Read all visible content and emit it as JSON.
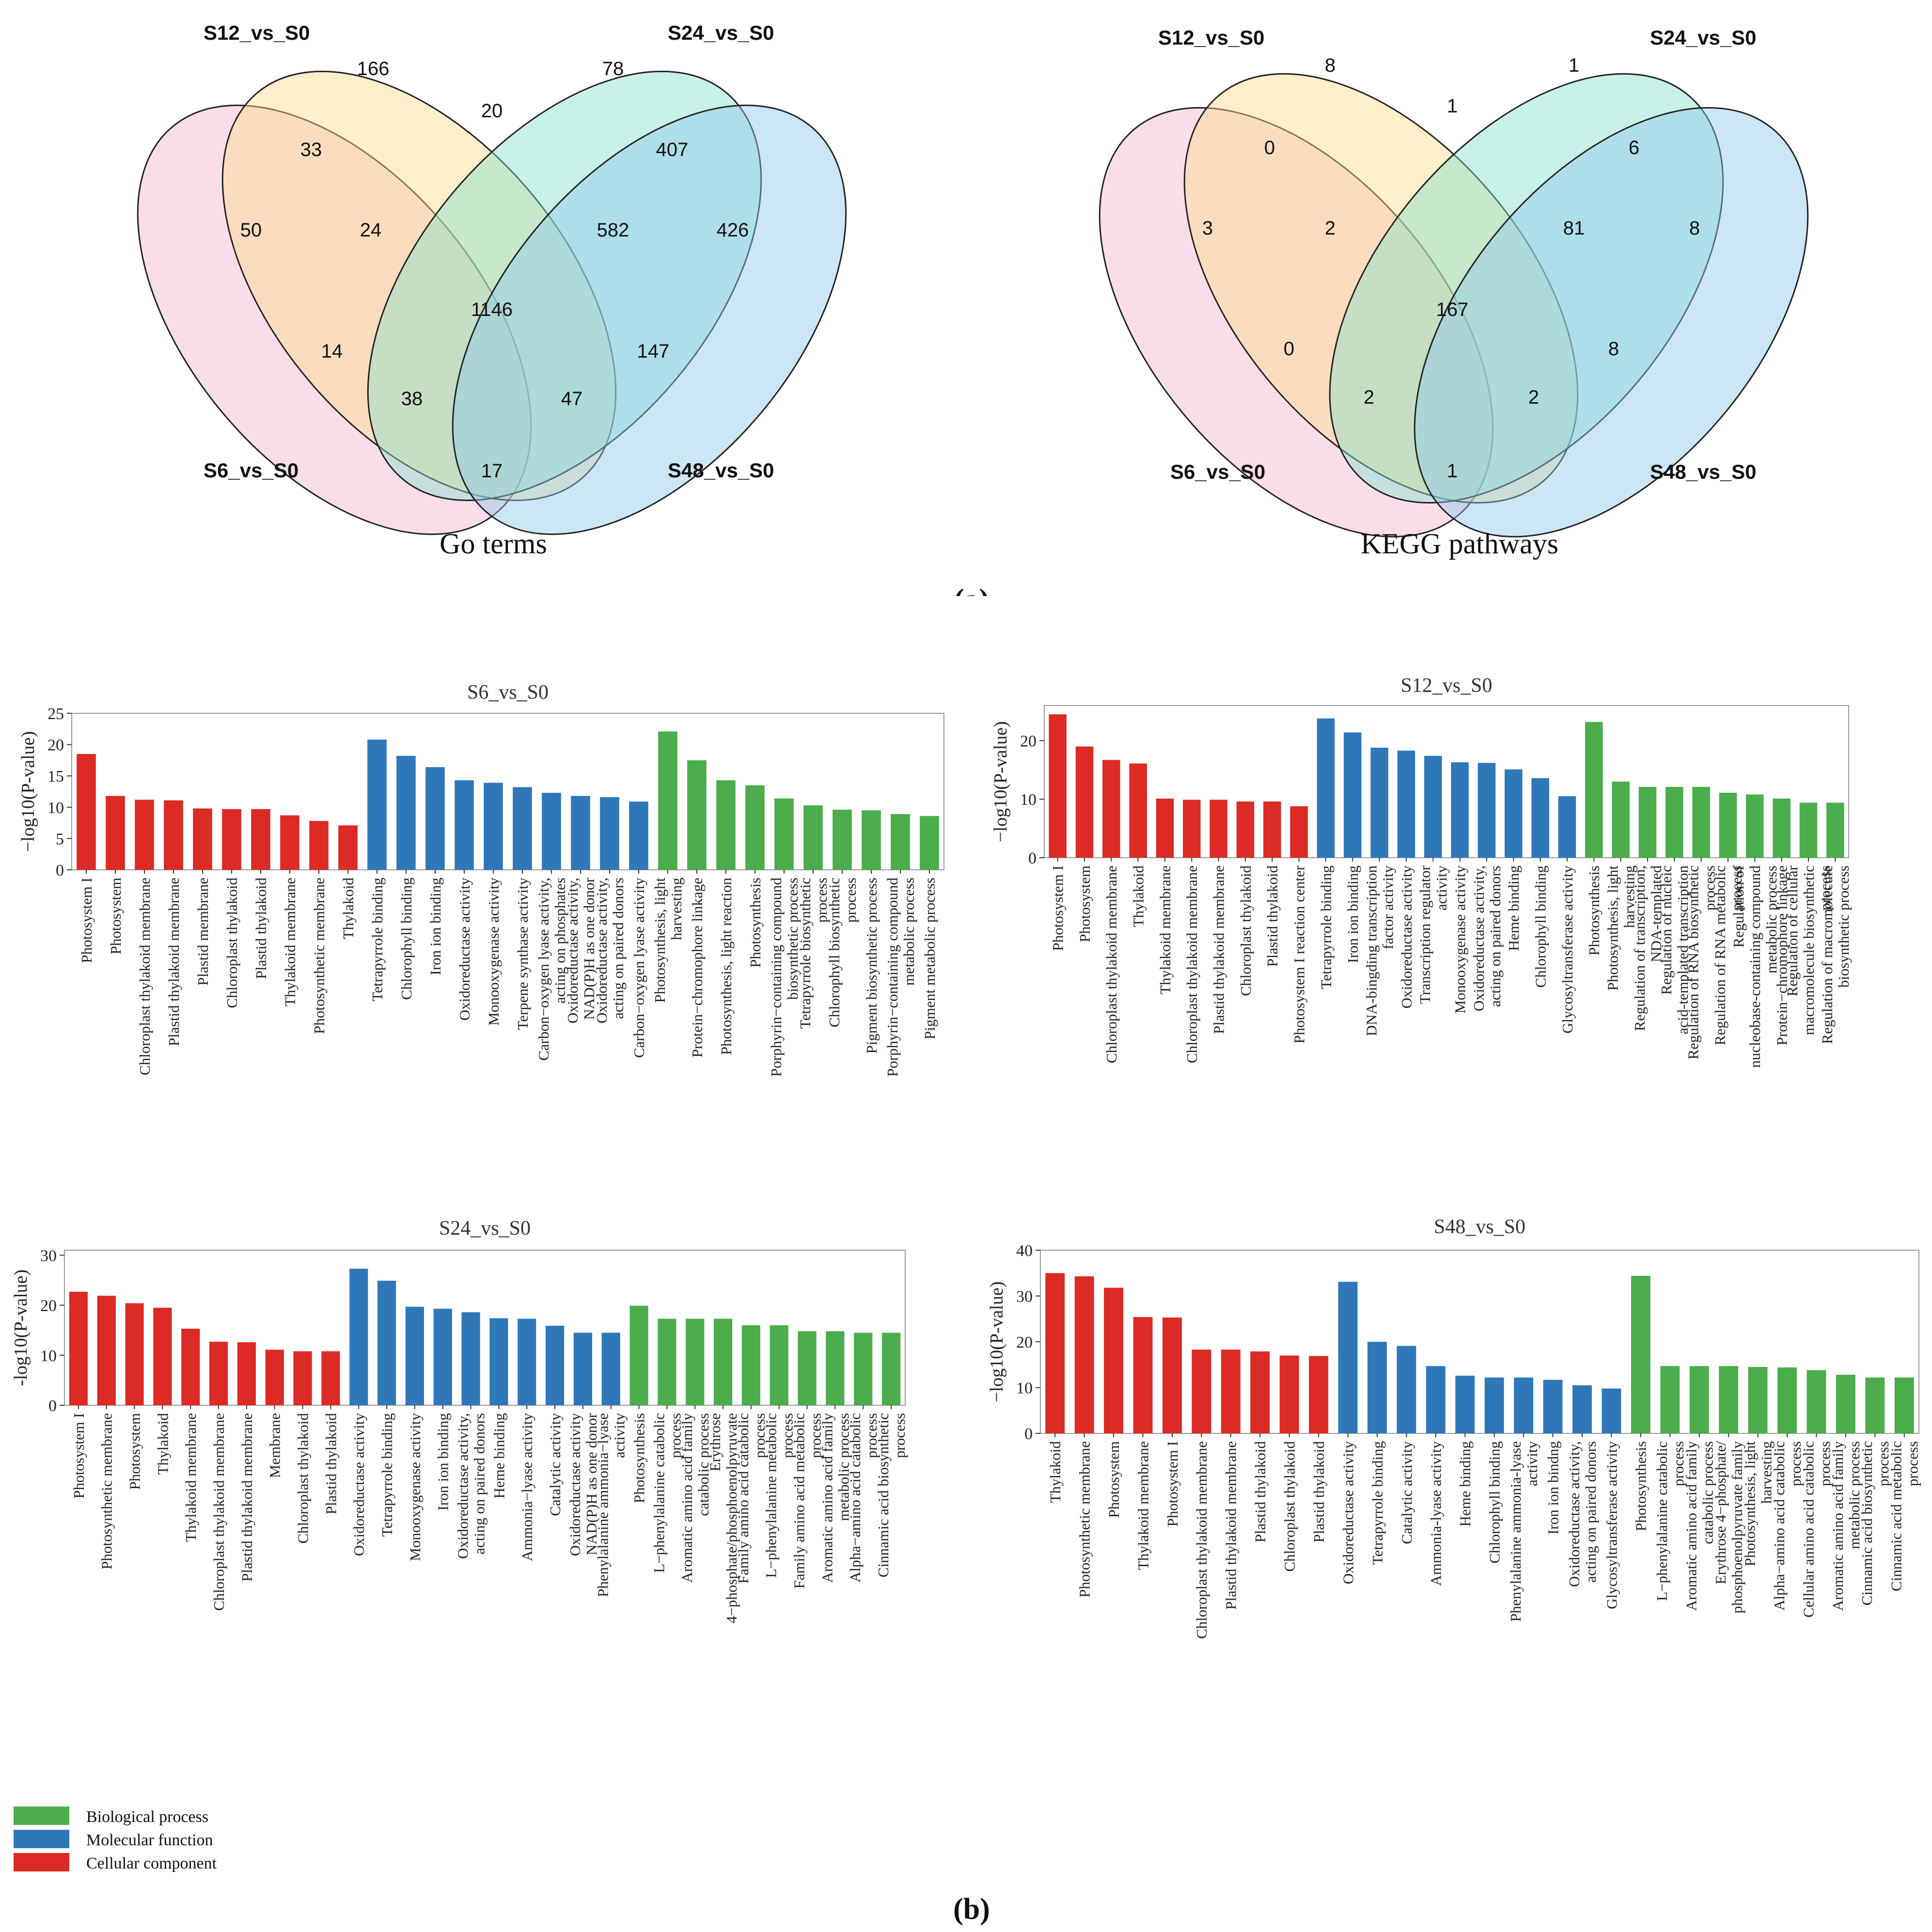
{
  "caption_a": "(a)",
  "caption_b": "(b)",
  "venn_go": {
    "title": "Go terms",
    "labels": {
      "s12": "S12_vs_S0",
      "s24": "S24_vs_S0",
      "s6": "S6_vs_S0",
      "s48": "S48_vs_S0"
    },
    "counts": {
      "s12_only": "166",
      "s24_only": "78",
      "s6_only": "50",
      "s48_only": "426",
      "s12_s24": "20",
      "s6_s12": "33",
      "s24_s48": "407",
      "s6_s12_s24": "24",
      "s12_s24_s48": "582",
      "all": "1146",
      "s6_s24": "14",
      "s12_s48": "147",
      "s6_s24_s48": "38",
      "s6_s12_s48": "47",
      "s6_s48": "17"
    }
  },
  "venn_kegg": {
    "title": "KEGG pathways",
    "labels": {
      "s12": "S12_vs_S0",
      "s24": "S24_vs_S0",
      "s6": "S6_vs_S0",
      "s48": "S48_vs_S0"
    },
    "counts": {
      "s12_only": "8",
      "s24_only": "1",
      "s6_only": "3",
      "s48_only": "8",
      "s12_s24": "1",
      "s6_s12": "0",
      "s24_s48": "6",
      "s6_s12_s24": "2",
      "s12_s24_s48": "81",
      "all": "167",
      "s6_s24": "0",
      "s12_s48": "8",
      "s6_s24_s48": "2",
      "s6_s12_s48": "2",
      "s6_s48": "1"
    }
  },
  "legend": {
    "items": [
      {
        "label": "Biological process",
        "color": "#4bad4b"
      },
      {
        "label": "Molecular function",
        "color": "#2f78b8"
      },
      {
        "label": "Cellular component",
        "color": "#dc2a24"
      }
    ]
  },
  "colors": {
    "cc": "#dc2a24",
    "mf": "#2f78b8",
    "bp": "#4bad4b"
  },
  "chart_data": [
    {
      "type": "bar",
      "title": "S6_vs_S0",
      "ylabel": "−log10(P-value)",
      "ylim": [
        0,
        25
      ],
      "yticks": [
        0,
        5,
        10,
        15,
        20,
        25
      ],
      "categories": [
        "Photosystem I",
        "Photosystem",
        "Chloroplast thylakoid membrane",
        "Plastid thylakoid membrane",
        "Plastid membrane",
        "Chloroplast thylakoid",
        "Plastid thylakoid",
        "Thylakoid membrane",
        "Photosynthetic membrane",
        "Thylakoid",
        "Tetrapyrrole binding",
        "Chlorophyll binding",
        "Iron ion binding",
        "Oxidoreductase activity",
        "Monooxygenase activity",
        "Terpene synthase activity",
        "Carbon−oxygen lyase activity, acting on phosphates",
        "Oxidoreductase activity, NAD(P)H as one donor",
        "Oxidoreductase activity, acting on paired donors",
        "Carbon−oxygen lyase activity",
        "Photosynthesis, light harvesting",
        "Protein−chromophore linkage",
        "Photosynthesis, light reaction",
        "Photosynthesis",
        "Porphyrin−containing compound biosynthetic process",
        "Tetrapyrrole biosynthetic process",
        "Chlorophyll biosynthetic process",
        "Pigment biosynthetic process",
        "Porphyrin−containing compound metabolic process",
        "Pigment metabolic process"
      ],
      "values": [
        18.5,
        11.8,
        11.2,
        11.1,
        9.8,
        9.7,
        9.7,
        8.7,
        7.8,
        7.1,
        20.8,
        18.2,
        16.4,
        14.3,
        13.9,
        13.2,
        12.3,
        11.8,
        11.6,
        10.9,
        22.1,
        17.5,
        14.3,
        13.5,
        11.4,
        10.3,
        9.6,
        9.5,
        8.9,
        8.6
      ],
      "groups": [
        "cc",
        "cc",
        "cc",
        "cc",
        "cc",
        "cc",
        "cc",
        "cc",
        "cc",
        "cc",
        "mf",
        "mf",
        "mf",
        "mf",
        "mf",
        "mf",
        "mf",
        "mf",
        "mf",
        "mf",
        "bp",
        "bp",
        "bp",
        "bp",
        "bp",
        "bp",
        "bp",
        "bp",
        "bp",
        "bp"
      ]
    },
    {
      "type": "bar",
      "title": "S12_vs_S0",
      "ylabel": "−log10(P-value)",
      "ylim": [
        0,
        26
      ],
      "yticks": [
        0,
        10,
        20
      ],
      "categories": [
        "Photosystem I",
        "Photosystem",
        "Chloroplast thylakoid membrane",
        "Thylakoid",
        "Thylakoid membrane",
        "Chloroplast thylakoid membrane",
        "Plastid thylakoid membrane",
        "Chloroplast thylakoid",
        "Plastid thylakoid",
        "Photosystem I reaction center",
        "Tetrapyrrole binding",
        "Iron ion binding",
        "DNA-bingding transcription factor activity",
        "Oxidoreductase activity",
        "Transcription regulator activity",
        "Monooxygenase activity",
        "Oxidoreductase activity, acting on paired donors",
        "Heme binding",
        "Chlorophyll binding",
        "Glycosyltransferase activity",
        "Photosynthesis",
        "Photosynthesis, light harvesting",
        "Regulation of transcription, NDA-templated",
        "Regulation of nucleic acid-templated transcription",
        "Regulation of RNA biosynthetic process",
        "Regulation of RNA metabolic process",
        "Regulation of nucleobase-containing compound metabolic process",
        "Protein−chromophore linkage",
        "Regulation of cellular macromolecule biosynthetic process",
        "Regulation of macromolecule biosynthetic process"
      ],
      "values": [
        24.5,
        19.0,
        16.7,
        16.1,
        10.1,
        9.9,
        9.9,
        9.6,
        9.6,
        8.8,
        23.8,
        21.4,
        18.8,
        18.3,
        17.4,
        16.3,
        16.2,
        15.1,
        13.6,
        10.5,
        23.2,
        13.0,
        12.1,
        12.1,
        12.1,
        11.1,
        10.8,
        10.1,
        9.4,
        9.4
      ],
      "groups": [
        "cc",
        "cc",
        "cc",
        "cc",
        "cc",
        "cc",
        "cc",
        "cc",
        "cc",
        "cc",
        "mf",
        "mf",
        "mf",
        "mf",
        "mf",
        "mf",
        "mf",
        "mf",
        "mf",
        "mf",
        "bp",
        "bp",
        "bp",
        "bp",
        "bp",
        "bp",
        "bp",
        "bp",
        "bp",
        "bp"
      ]
    },
    {
      "type": "bar",
      "title": "S24_vs_S0",
      "ylabel": "-log10(P-value)",
      "ylim": [
        0,
        31
      ],
      "yticks": [
        0,
        10,
        20,
        30
      ],
      "categories": [
        "Photosystem I",
        "Photosynthetic membrane",
        "Photosystem",
        "Thylakoid",
        "Thylakoid membrane",
        "Chloroplast thylakoid membrane",
        "Plastid thylakoid membrane",
        "Membrane",
        "Chloroplast thylakoid",
        "Plastid thylakoid",
        "Oxidoreductase activity",
        "Tetrapyrrole binding",
        "Monooxygenase activity",
        "Iron ion binding",
        "Oxidoreductase activity, acting on paired donors",
        "Heme binding",
        "Ammonia−lyase activity",
        "Catalytic activity",
        "Oxidoreductase activity NAD(P)H as one donor",
        "Phenylalanine ammonia−lyase activity",
        "Photosynthesis",
        "L−phenylalanine catabolic process",
        "Aromatic amino acid family catabolic process",
        "Erythrose 4−phosphate/phosphoenolpyruvate",
        "Family amino acid catabolic process",
        "L−phenylalanine metabolic process",
        "Family amino acid metabolic process",
        "Aromatic amino acid family metabolic process",
        "Alpha−amino acid catabolic process",
        "Cinnamic acid biosynthetic process"
      ],
      "values": [
        22.7,
        21.9,
        20.4,
        19.5,
        15.3,
        12.7,
        12.6,
        11.1,
        10.8,
        10.8,
        27.3,
        24.9,
        19.7,
        19.3,
        18.6,
        17.4,
        17.3,
        15.9,
        14.5,
        14.5,
        19.9,
        17.3,
        17.3,
        17.3,
        16.0,
        16.0,
        14.8,
        14.8,
        14.5,
        14.5
      ],
      "groups": [
        "cc",
        "cc",
        "cc",
        "cc",
        "cc",
        "cc",
        "cc",
        "cc",
        "cc",
        "cc",
        "mf",
        "mf",
        "mf",
        "mf",
        "mf",
        "mf",
        "mf",
        "mf",
        "mf",
        "mf",
        "bp",
        "bp",
        "bp",
        "bp",
        "bp",
        "bp",
        "bp",
        "bp",
        "bp",
        "bp"
      ]
    },
    {
      "type": "bar",
      "title": "S48_vs_S0",
      "ylabel": "−log10(P-value)",
      "ylim": [
        0,
        40
      ],
      "yticks": [
        0,
        10,
        20,
        30,
        40
      ],
      "categories": [
        "Thylakoid",
        "Photosynthetic membrane",
        "Photosystem",
        "Thylakoid membrane",
        "Photosystem I",
        "Chloroplast thylakoid membrane",
        "Plastid thylakoid membrane",
        "Plastid thylakoid",
        "Chloroplast thylakoid",
        "Plastid thylakoid",
        "Oxidoreductase activity",
        "Tetrapyrrole binding",
        "Catalytic activity",
        "Ammonia-lyase activity",
        "Heme binding",
        "Chlorophyll binding",
        "Phenylalanine ammonia-lyase activity",
        "Iron ion bindng",
        "Oxidoreductase activity, acting on paired donors",
        "Glycosyltransferase activity",
        "Photosynthesis",
        "L−phenylalanine catabolic process",
        "Aromatic amino acid family catabolic process",
        "Erythrose 4−phosphate/ phosphoenolpyruvate family",
        "Photosynthesis, light harvesting",
        "Alpha−amino acid catabolic process",
        "Cellular amino acid catabolic process",
        "Aromatic amino acid family metabolic process",
        "Cinnamic acid biosynthetic process",
        "Cinnamic acid metabolic process"
      ],
      "values": [
        35.0,
        34.3,
        31.8,
        25.4,
        25.3,
        18.3,
        18.3,
        17.9,
        17.0,
        16.9,
        33.1,
        20.0,
        19.1,
        14.7,
        12.6,
        12.2,
        12.2,
        11.7,
        10.5,
        9.8,
        34.4,
        14.7,
        14.7,
        14.7,
        14.5,
        14.4,
        13.8,
        12.8,
        12.2,
        12.2
      ],
      "groups": [
        "cc",
        "cc",
        "cc",
        "cc",
        "cc",
        "cc",
        "cc",
        "cc",
        "cc",
        "cc",
        "mf",
        "mf",
        "mf",
        "mf",
        "mf",
        "mf",
        "mf",
        "mf",
        "mf",
        "mf",
        "bp",
        "bp",
        "bp",
        "bp",
        "bp",
        "bp",
        "bp",
        "bp",
        "bp",
        "bp"
      ]
    }
  ]
}
